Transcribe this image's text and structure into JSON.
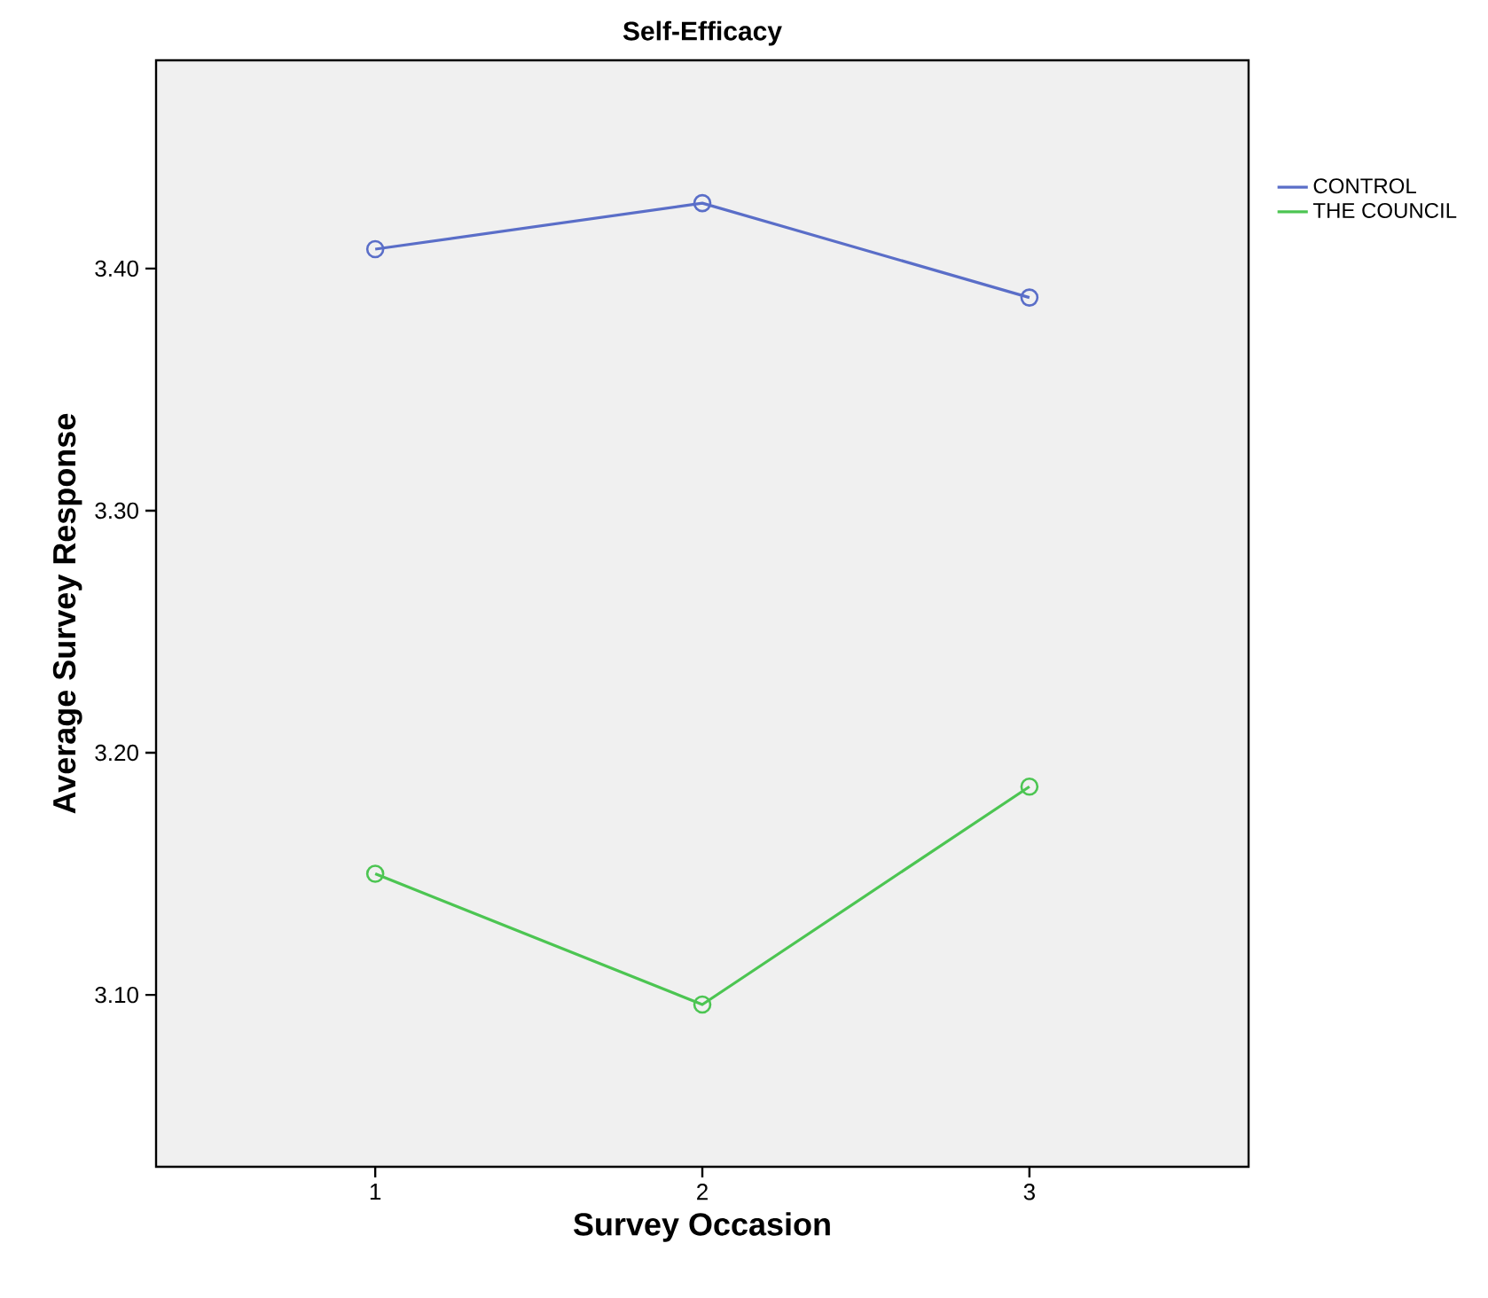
{
  "chart_data": {
    "type": "line",
    "title": "Self-Efficacy",
    "xlabel": "Survey Occasion",
    "ylabel": "Average Survey Response",
    "x": [
      1,
      2,
      3
    ],
    "series": [
      {
        "name": "CONTROL",
        "color": "#5a6ec8",
        "values": [
          3.408,
          3.427,
          3.388
        ]
      },
      {
        "name": "THE COUNCIL",
        "color": "#4cc552",
        "values": [
          3.15,
          3.096,
          3.186
        ]
      }
    ],
    "xlim": [
      0.33,
      3.67
    ],
    "xticks": [
      1,
      2,
      3
    ],
    "ylim": [
      3.029,
      3.486
    ],
    "yticks": [
      {
        "value": 3.1,
        "label": "3.10"
      },
      {
        "value": 3.2,
        "label": "3.20"
      },
      {
        "value": 3.3,
        "label": "3.30"
      },
      {
        "value": 3.4,
        "label": "3.40"
      }
    ],
    "marker": "circle",
    "legend": "top right",
    "grid": false
  }
}
